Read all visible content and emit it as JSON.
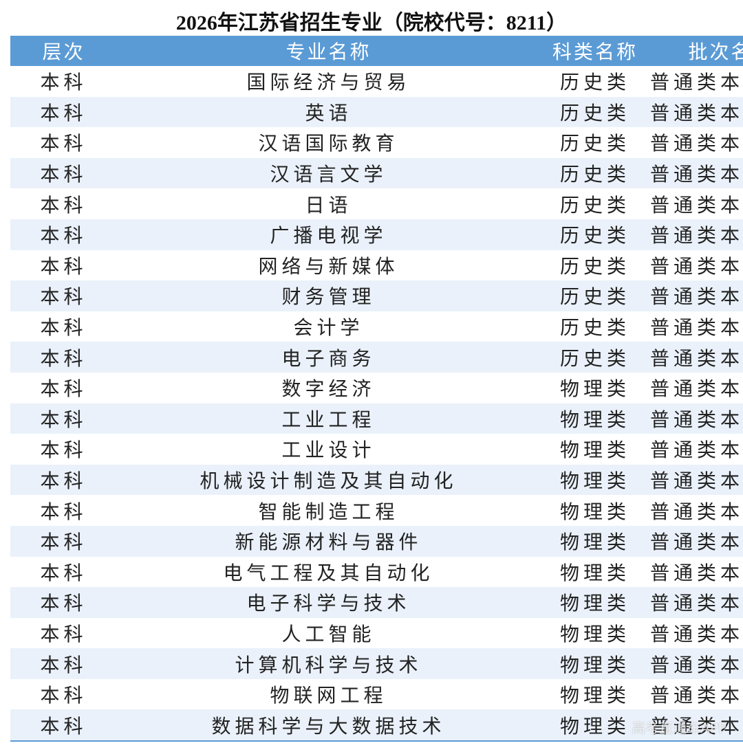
{
  "title": "2026年江苏省招生专业（院校代号：8211）",
  "table": {
    "header": [
      "层次",
      "专业名称",
      "科类名称",
      "批次名称"
    ],
    "rows": [
      [
        "本科",
        "国际经济与贸易",
        "历史类",
        "普通类本科院校"
      ],
      [
        "本科",
        "英语",
        "历史类",
        "普通类本科院校"
      ],
      [
        "本科",
        "汉语国际教育",
        "历史类",
        "普通类本科院校"
      ],
      [
        "本科",
        "汉语言文学",
        "历史类",
        "普通类本科院校"
      ],
      [
        "本科",
        "日语",
        "历史类",
        "普通类本科院校"
      ],
      [
        "本科",
        "广播电视学",
        "历史类",
        "普通类本科院校"
      ],
      [
        "本科",
        "网络与新媒体",
        "历史类",
        "普通类本科院校"
      ],
      [
        "本科",
        "财务管理",
        "历史类",
        "普通类本科院校"
      ],
      [
        "本科",
        "会计学",
        "历史类",
        "普通类本科院校"
      ],
      [
        "本科",
        "电子商务",
        "历史类",
        "普通类本科院校"
      ],
      [
        "本科",
        "数字经济",
        "物理类",
        "普通类本科院校"
      ],
      [
        "本科",
        "工业工程",
        "物理类",
        "普通类本科院校"
      ],
      [
        "本科",
        "工业设计",
        "物理类",
        "普通类本科院校"
      ],
      [
        "本科",
        "机械设计制造及其自动化",
        "物理类",
        "普通类本科院校"
      ],
      [
        "本科",
        "智能制造工程",
        "物理类",
        "普通类本科院校"
      ],
      [
        "本科",
        "新能源材料与器件",
        "物理类",
        "普通类本科院校"
      ],
      [
        "本科",
        "电气工程及其自动化",
        "物理类",
        "普通类本科院校"
      ],
      [
        "本科",
        "电子科学与技术",
        "物理类",
        "普通类本科院校"
      ],
      [
        "本科",
        "人工智能",
        "物理类",
        "普通类本科院校"
      ],
      [
        "本科",
        "计算机科学与技术",
        "物理类",
        "普通类本科院校"
      ],
      [
        "本科",
        "物联网工程",
        "物理类",
        "普通类本科院校"
      ],
      [
        "本科",
        "数据科学与大数据技术",
        "物理类",
        "普通类本科院校"
      ]
    ]
  },
  "watermark": "高考直通车APP"
}
